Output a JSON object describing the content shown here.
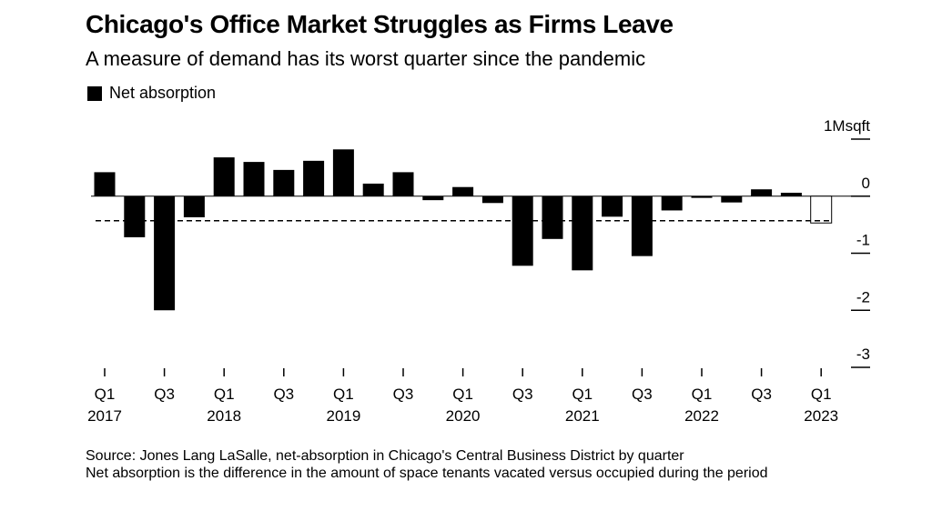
{
  "title": "Chicago's Office Market Struggles as Firms Leave",
  "subtitle": "A measure of demand has its worst quarter since the pandemic",
  "legend": {
    "label": "Net absorption",
    "color": "#000000"
  },
  "chart_data": {
    "type": "bar",
    "title": "Chicago's Office Market Struggles as Firms Leave",
    "subtitle": "A measure of demand has its worst quarter since the pandemic",
    "categories": [
      "Q1 2017",
      "Q2 2017",
      "Q3 2017",
      "Q4 2017",
      "Q1 2018",
      "Q2 2018",
      "Q3 2018",
      "Q4 2018",
      "Q1 2019",
      "Q2 2019",
      "Q3 2019",
      "Q4 2019",
      "Q1 2020",
      "Q2 2020",
      "Q3 2020",
      "Q4 2020",
      "Q1 2021",
      "Q2 2021",
      "Q3 2021",
      "Q4 2021",
      "Q1 2022",
      "Q2 2022",
      "Q3 2022",
      "Q4 2022",
      "Q1 2023"
    ],
    "series": [
      {
        "name": "Net absorption",
        "values": [
          0.42,
          -0.72,
          -2.0,
          -0.37,
          0.68,
          0.6,
          0.46,
          0.62,
          0.82,
          0.22,
          0.42,
          -0.07,
          0.16,
          -0.12,
          -1.22,
          -0.75,
          -1.3,
          -0.36,
          -1.05,
          -0.25,
          -0.03,
          -0.11,
          0.12,
          0.06,
          -0.47
        ]
      }
    ],
    "highlight": {
      "index": 24,
      "style": "outline"
    },
    "reference_line": {
      "value": -0.43,
      "style": "dashed"
    },
    "ylim": [
      -3,
      1
    ],
    "y_unit": "Msqft",
    "y_ticks": [
      {
        "value": 1,
        "label": "1Msqft"
      },
      {
        "value": 0,
        "label": "0"
      },
      {
        "value": -1,
        "label": "-1"
      },
      {
        "value": -2,
        "label": "-2"
      },
      {
        "value": -3,
        "label": "-3"
      }
    ],
    "x_ticks": [
      {
        "index": 0,
        "q": "Q1",
        "year": "2017"
      },
      {
        "index": 2,
        "q": "Q3",
        "year": ""
      },
      {
        "index": 4,
        "q": "Q1",
        "year": "2018"
      },
      {
        "index": 6,
        "q": "Q3",
        "year": ""
      },
      {
        "index": 8,
        "q": "Q1",
        "year": "2019"
      },
      {
        "index": 10,
        "q": "Q3",
        "year": ""
      },
      {
        "index": 12,
        "q": "Q1",
        "year": "2020"
      },
      {
        "index": 14,
        "q": "Q3",
        "year": ""
      },
      {
        "index": 16,
        "q": "Q1",
        "year": "2021"
      },
      {
        "index": 18,
        "q": "Q3",
        "year": ""
      },
      {
        "index": 20,
        "q": "Q1",
        "year": "2022"
      },
      {
        "index": 22,
        "q": "Q3",
        "year": ""
      },
      {
        "index": 24,
        "q": "Q1",
        "year": "2023"
      }
    ],
    "xlabel": "",
    "ylabel": "",
    "grid": false,
    "legend_position": "top-left"
  },
  "source_lines": [
    "Source: Jones Lang LaSalle, net-absorption in Chicago's Central Business District by quarter",
    "Net absorption is the difference in the amount of space tenants vacated versus occupied during the period"
  ]
}
